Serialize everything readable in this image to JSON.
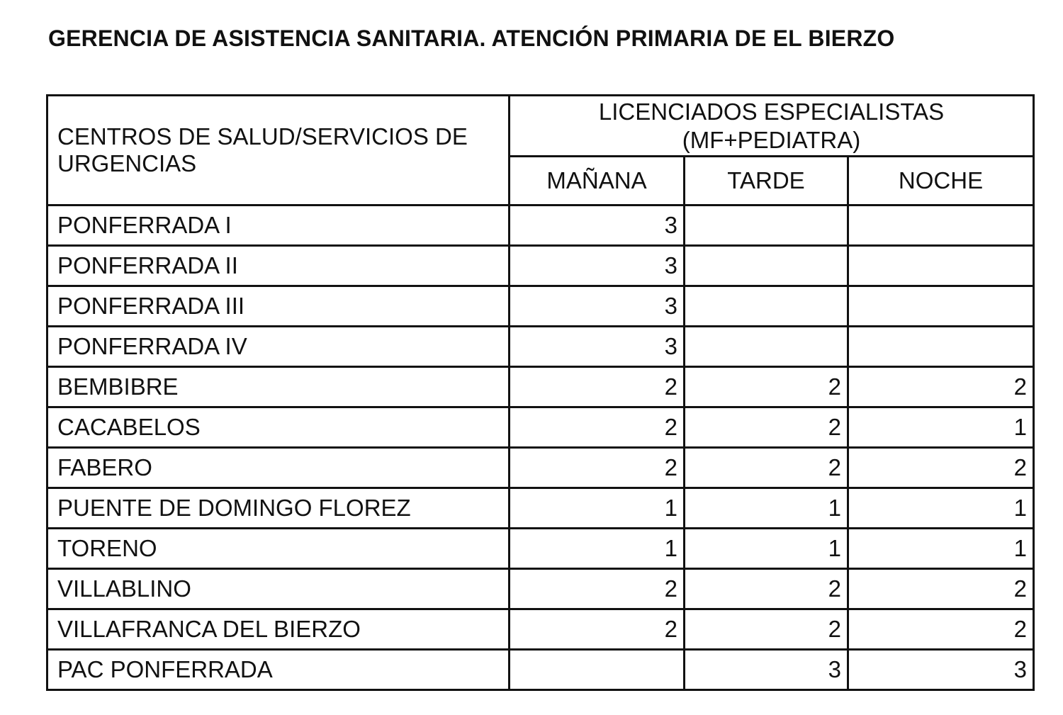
{
  "title": "GERENCIA DE ASISTENCIA SANITARIA. ATENCIÓN PRIMARIA DE EL BIERZO",
  "table": {
    "row_header": "CENTROS DE SALUD/SERVICIOS DE URGENCIAS",
    "group_header_line1": "LICENCIADOS ESPECIALISTAS",
    "group_header_line2": "(MF+PEDIATRA)",
    "columns": [
      "MAÑANA",
      "TARDE",
      "NOCHE"
    ],
    "rows": [
      {
        "name": "PONFERRADA I",
        "values": [
          "3",
          "",
          ""
        ]
      },
      {
        "name": "PONFERRADA II",
        "values": [
          "3",
          "",
          ""
        ]
      },
      {
        "name": "PONFERRADA III",
        "values": [
          "3",
          "",
          ""
        ]
      },
      {
        "name": "PONFERRADA IV",
        "values": [
          "3",
          "",
          ""
        ]
      },
      {
        "name": "BEMBIBRE",
        "values": [
          "2",
          "2",
          "2"
        ]
      },
      {
        "name": "CACABELOS",
        "values": [
          "2",
          "2",
          "1"
        ]
      },
      {
        "name": "FABERO",
        "values": [
          "2",
          "2",
          "2"
        ]
      },
      {
        "name": "PUENTE DE DOMINGO FLOREZ",
        "values": [
          "1",
          "1",
          "1"
        ]
      },
      {
        "name": "TORENO",
        "values": [
          "1",
          "1",
          "1"
        ]
      },
      {
        "name": "VILLABLINO",
        "values": [
          "2",
          "2",
          "2"
        ]
      },
      {
        "name": "VILLAFRANCA DEL BIERZO",
        "values": [
          "2",
          "2",
          "2"
        ]
      },
      {
        "name": "PAC PONFERRADA",
        "values": [
          "",
          "3",
          "3"
        ]
      }
    ]
  }
}
